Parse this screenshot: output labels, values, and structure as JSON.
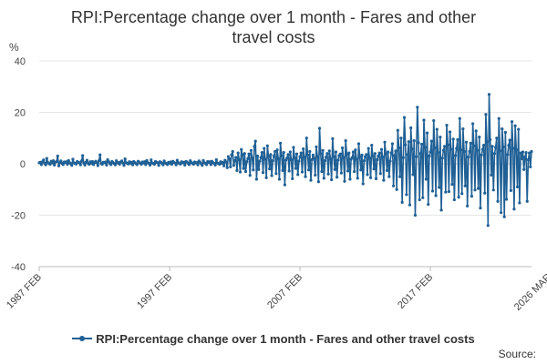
{
  "chart_data": {
    "type": "line",
    "title_line1": "RPI:Percentage change over 1 month - Fares and other",
    "title_line2": "travel costs",
    "ylabel": "%",
    "ylim": [
      -40,
      40
    ],
    "yticks": [
      40,
      20,
      0,
      -20,
      -40
    ],
    "x_tick_labels": [
      "1987 FEB",
      "1997 FEB",
      "2007 FEB",
      "2017 FEB",
      "2026 MAR"
    ],
    "x_tick_index": [
      0,
      120,
      240,
      360,
      469
    ],
    "series": [
      {
        "name": "RPI:Percentage change over 1 month - Fares and other travel costs",
        "color": "#206095",
        "values": [
          0.4,
          0.6,
          -0.3,
          0.8,
          1.5,
          0.2,
          -0.4,
          2.1,
          0.5,
          0.1,
          -0.2,
          1.0,
          0.3,
          1.2,
          -0.5,
          0.6,
          0.9,
          3.0,
          -0.8,
          0.4,
          1.1,
          0.2,
          -0.3,
          0.7,
          0.5,
          0.8,
          -0.2,
          1.3,
          0.4,
          0.1,
          -0.6,
          1.8,
          0.3,
          0.2,
          -0.1,
          0.9,
          0.6,
          0.4,
          -0.4,
          1.1,
          3.2,
          0.3,
          -0.5,
          0.6,
          1.4,
          0.2,
          -0.2,
          0.8,
          0.2,
          0.9,
          -0.3,
          0.5,
          1.0,
          0.4,
          -0.7,
          1.2,
          3.5,
          0.1,
          -0.2,
          0.6,
          0.4,
          0.7,
          -0.5,
          1.6,
          0.8,
          0.2,
          -0.3,
          0.9,
          0.5,
          0.1,
          -0.4,
          1.2,
          0.3,
          0.5,
          -0.2,
          0.7,
          1.1,
          0.3,
          -0.6,
          1.9,
          0.4,
          0.2,
          -0.1,
          0.8,
          0.2,
          0.6,
          -0.4,
          0.9,
          0.5,
          0.1,
          -0.3,
          1.0,
          0.6,
          0.2,
          -0.2,
          0.7,
          0.3,
          0.8,
          -0.3,
          1.3,
          0.4,
          0.2,
          -0.5,
          1.5,
          0.3,
          0.1,
          -0.2,
          0.9,
          0.5,
          0.4,
          -0.6,
          0.8,
          0.6,
          0.2,
          -0.4,
          1.1,
          0.3,
          0.1,
          -0.3,
          0.6,
          0.2,
          0.7,
          -0.2,
          1.0,
          0.5,
          0.3,
          -0.4,
          1.4,
          0.4,
          0.1,
          -0.1,
          0.8,
          0.4,
          0.6,
          -0.5,
          0.9,
          0.7,
          0.2,
          -0.3,
          1.2,
          0.5,
          0.2,
          -0.2,
          0.7,
          0.3,
          0.5,
          -0.4,
          1.1,
          0.6,
          0.1,
          -0.6,
          1.3,
          0.4,
          0.2,
          -0.3,
          0.9,
          0.5,
          0.8,
          -0.3,
          1.0,
          0.4,
          0.2,
          -0.5,
          1.6,
          0.3,
          0.1,
          -0.2,
          0.8,
          0.2,
          0.6,
          -0.8,
          1.4,
          0.7,
          -1.5,
          2.8,
          1.9,
          -1.2,
          3.5,
          4.8,
          -0.6,
          1.2,
          2.5,
          -2.6,
          4.2,
          1.6,
          -3.2,
          5.6,
          3.4,
          -1.8,
          4.0,
          -3.0,
          0.8,
          2.0,
          3.8,
          -4.5,
          5.2,
          2.2,
          -2.4,
          6.8,
          8.8,
          -6.0,
          3.0,
          -2.2,
          1.0,
          2.4,
          4.4,
          -3.4,
          6.0,
          1.8,
          -5.4,
          7.0,
          2.8,
          -2.0,
          3.6,
          -4.6,
          1.2,
          3.0,
          4.8,
          -3.8,
          5.4,
          2.0,
          -6.0,
          8.0,
          3.2,
          -2.6,
          4.4,
          -8.2,
          1.4,
          2.2,
          3.6,
          -2.8,
          4.6,
          1.6,
          -5.8,
          6.4,
          2.4,
          -1.8,
          3.8,
          -4.2,
          1.0,
          2.8,
          4.2,
          -3.2,
          5.8,
          2.6,
          -5.0,
          10.0,
          3.4,
          -2.4,
          4.8,
          -6.4,
          1.6,
          3.4,
          2.2,
          -4.4,
          6.6,
          2.8,
          -7.0,
          13.8,
          4.0,
          -3.0,
          5.2,
          -5.6,
          1.2,
          2.6,
          4.0,
          -4.0,
          5.0,
          2.0,
          -6.2,
          9.8,
          2.8,
          -2.2,
          4.6,
          -5.2,
          1.4,
          3.2,
          3.8,
          -3.6,
          6.2,
          2.4,
          -6.8,
          9.0,
          3.6,
          -2.8,
          4.2,
          -6.0,
          1.8,
          2.4,
          4.6,
          -3.0,
          5.4,
          1.8,
          -5.6,
          7.8,
          2.6,
          -2.4,
          3.4,
          -7.8,
          1.2,
          2.8,
          3.6,
          -4.2,
          6.0,
          2.2,
          -5.4,
          7.2,
          3.0,
          -2.0,
          4.0,
          -5.8,
          1.6,
          3.0,
          4.2,
          -3.8,
          5.6,
          2.6,
          -6.4,
          8.4,
          3.8,
          -2.6,
          4.6,
          -5.0,
          1.0,
          4.2,
          7.8,
          -8.6,
          3.2,
          5.0,
          -10.0,
          13.0,
          6.2,
          -5.0,
          10.0,
          -15.0,
          2.4,
          18.0,
          7.4,
          -12.0,
          3.6,
          8.6,
          -16.0,
          14.0,
          5.8,
          -4.2,
          9.0,
          -20.0,
          2.8,
          22.0,
          8.2,
          -14.0,
          4.0,
          7.6,
          -13.2,
          17.0,
          6.4,
          -6.0,
          12.0,
          -15.8,
          3.0,
          4.6,
          8.8,
          -10.6,
          16.8,
          6.2,
          -12.4,
          13.4,
          4.4,
          -9.2,
          10.4,
          -18.0,
          2.2,
          5.2,
          6.8,
          -11.0,
          15.0,
          7.4,
          -10.8,
          12.4,
          5.6,
          -8.0,
          9.6,
          -14.0,
          3.2,
          6.0,
          9.4,
          -13.0,
          17.6,
          5.4,
          -11.6,
          13.6,
          4.8,
          -8.6,
          8.4,
          -16.4,
          2.6,
          4.8,
          8.0,
          -12.6,
          15.6,
          7.0,
          -10.2,
          12.8,
          5.2,
          -9.6,
          10.4,
          -17.2,
          3.4,
          5.6,
          7.2,
          -11.4,
          19.2,
          8.6,
          -24.0,
          27.0,
          9.4,
          -4.4,
          6.8,
          -10.2,
          4.0,
          6.4,
          10.0,
          -14.6,
          17.6,
          5.0,
          -19.0,
          13.6,
          6.6,
          -20.6,
          12.2,
          -13.8,
          3.6,
          7.2,
          9.2,
          -10.4,
          16.4,
          6.0,
          -17.6,
          14.8,
          5.4,
          -9.0,
          13.4,
          -15.2,
          4.2,
          2.0,
          4.6,
          -2.2,
          2.6,
          4.4,
          -14.6,
          1.6,
          4.2,
          -1.2,
          4.8
        ]
      }
    ],
    "legend_label": "RPI:Percentage change over 1 month - Fares and other travel costs",
    "legend_position": "bottom",
    "source_label": "Source:",
    "grid": true
  }
}
